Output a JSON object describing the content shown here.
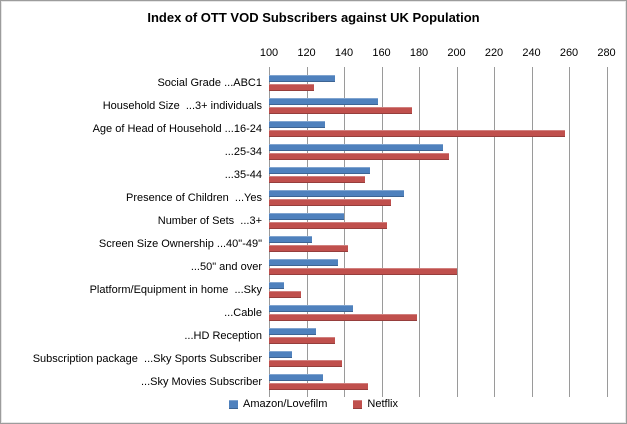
{
  "chart": {
    "title": "Index of OTT VOD Subscribers against UK Population"
  },
  "chart_data": {
    "type": "bar",
    "orientation": "horizontal",
    "title": "Index of OTT VOD Subscribers against UK Population",
    "xlabel": "",
    "ylabel": "",
    "axis_position": "top",
    "grid": true,
    "legend_position": "bottom",
    "x_axis": {
      "min": 100,
      "max": 284,
      "ticks": [
        100,
        120,
        140,
        160,
        180,
        200,
        220,
        240,
        260,
        280
      ]
    },
    "categories": [
      "Social Grade ...ABC1",
      "Household Size  ...3+ individuals",
      "Age of Head of Household ...16-24",
      "...25-34",
      "...35-44",
      "Presence of Children  ...Yes",
      "Number of Sets  ...3+",
      "Screen Size Ownership ...40\"-49\"",
      "...50\" and over",
      "Platform/Equipment in home  ...Sky",
      "...Cable",
      "...HD Reception",
      "Subscription package  ...Sky Sports Subscriber",
      "...Sky Movies Subscriber"
    ],
    "series": [
      {
        "name": "Amazon/Lovefilm",
        "color": "#4F81BD",
        "values": [
          135,
          158,
          130,
          193,
          154,
          172,
          140,
          123,
          137,
          108,
          145,
          125,
          112,
          129
        ]
      },
      {
        "name": "Netflix",
        "color": "#C0504D",
        "values": [
          124,
          176,
          258,
          196,
          151,
          165,
          163,
          142,
          200,
          117,
          179,
          135,
          139,
          153
        ]
      }
    ],
    "colors": {
      "gridline": "#9a9a9a",
      "frame_border": "#9c9c9c",
      "background": "#ffffff",
      "text": "#000000"
    }
  }
}
